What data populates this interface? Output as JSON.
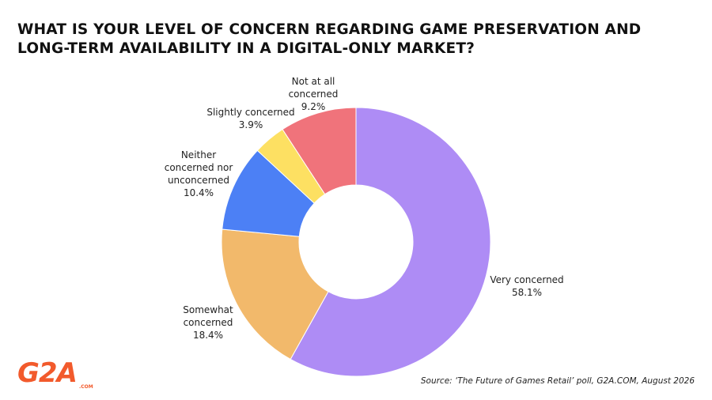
{
  "chart_data": {
    "type": "donut",
    "title": "WHAT IS YOUR LEVEL OF CONCERN REGARDING GAME PRESERVATION AND LONG-TERM AVAILABILITY IN A DIGITAL-ONLY MARKET?",
    "categories": [
      "Very concerned",
      "Somewhat concerned",
      "Neither concerned nor unconcerned",
      "Slightly concerned",
      "Not at all concerned"
    ],
    "values": [
      58.1,
      18.4,
      10.4,
      3.9,
      9.2
    ],
    "value_labels": [
      "58.1%",
      "18.4%",
      "10.4%",
      "3.9%",
      "9.2%"
    ],
    "colors": [
      "#ae8cf5",
      "#f2b96b",
      "#4c80f5",
      "#fde062",
      "#f0737b"
    ],
    "source": "Source: ‘The Future of Games Retail’ poll, G2A.COM, August 2026"
  },
  "logo": {
    "text": "G2A",
    "sub": ".COM"
  }
}
